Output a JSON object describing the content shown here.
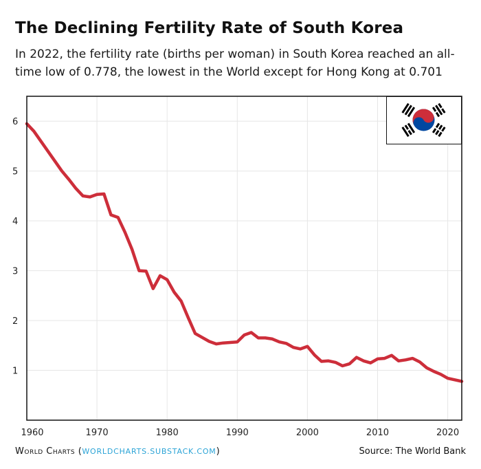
{
  "title": "The Declining Fertility Rate of South Korea",
  "subtitle": "In 2022, the fertility rate (births per woman) in South Korea reached an all-time low of 0.778, the lowest in the World except for Hong Kong at 0.701",
  "footer": {
    "brand": "World Charts",
    "open_paren": "(",
    "link": "worldcharts.substack.com",
    "close_paren": ")",
    "source": "Source: The World Bank"
  },
  "flag": {
    "icon": "south-korea-flag-icon",
    "colors": {
      "red": "#cd2e3a",
      "blue": "#0047a0",
      "black": "#000000"
    }
  },
  "chart_data": {
    "type": "line",
    "title": "",
    "xlabel": "",
    "ylabel": "",
    "xlim": [
      1960,
      2022
    ],
    "ylim": [
      0,
      6.5
    ],
    "xticks": [
      1960,
      1970,
      1980,
      1990,
      2000,
      2010,
      2020
    ],
    "yticks": [
      1,
      2,
      3,
      4,
      5,
      6
    ],
    "grid": true,
    "line_color": "#cd2e3a",
    "series": [
      {
        "x": [
          1960,
          1961,
          1962,
          1963,
          1964,
          1965,
          1966,
          1967,
          1968,
          1969,
          1970,
          1971,
          1972,
          1973,
          1974,
          1975,
          1976,
          1977,
          1978,
          1979,
          1980,
          1981,
          1982,
          1983,
          1984,
          1985,
          1986,
          1987,
          1988,
          1989,
          1990,
          1991,
          1992,
          1993,
          1994,
          1995,
          1996,
          1997,
          1998,
          1999,
          2000,
          2001,
          2002,
          2003,
          2004,
          2005,
          2006,
          2007,
          2008,
          2009,
          2010,
          2011,
          2012,
          2013,
          2014,
          2015,
          2016,
          2017,
          2018,
          2019,
          2020,
          2021,
          2022
        ],
        "y": [
          5.95,
          5.8,
          5.6,
          5.4,
          5.2,
          5.0,
          4.83,
          4.65,
          4.5,
          4.48,
          4.53,
          4.54,
          4.12,
          4.07,
          3.77,
          3.43,
          3.0,
          2.99,
          2.64,
          2.9,
          2.82,
          2.57,
          2.39,
          2.06,
          1.74,
          1.66,
          1.58,
          1.53,
          1.55,
          1.56,
          1.57,
          1.71,
          1.76,
          1.65,
          1.65,
          1.63,
          1.57,
          1.54,
          1.46,
          1.43,
          1.48,
          1.31,
          1.18,
          1.19,
          1.16,
          1.09,
          1.13,
          1.26,
          1.19,
          1.15,
          1.23,
          1.24,
          1.3,
          1.19,
          1.21,
          1.24,
          1.17,
          1.05,
          0.98,
          0.92,
          0.84,
          0.81,
          0.778
        ]
      }
    ]
  }
}
